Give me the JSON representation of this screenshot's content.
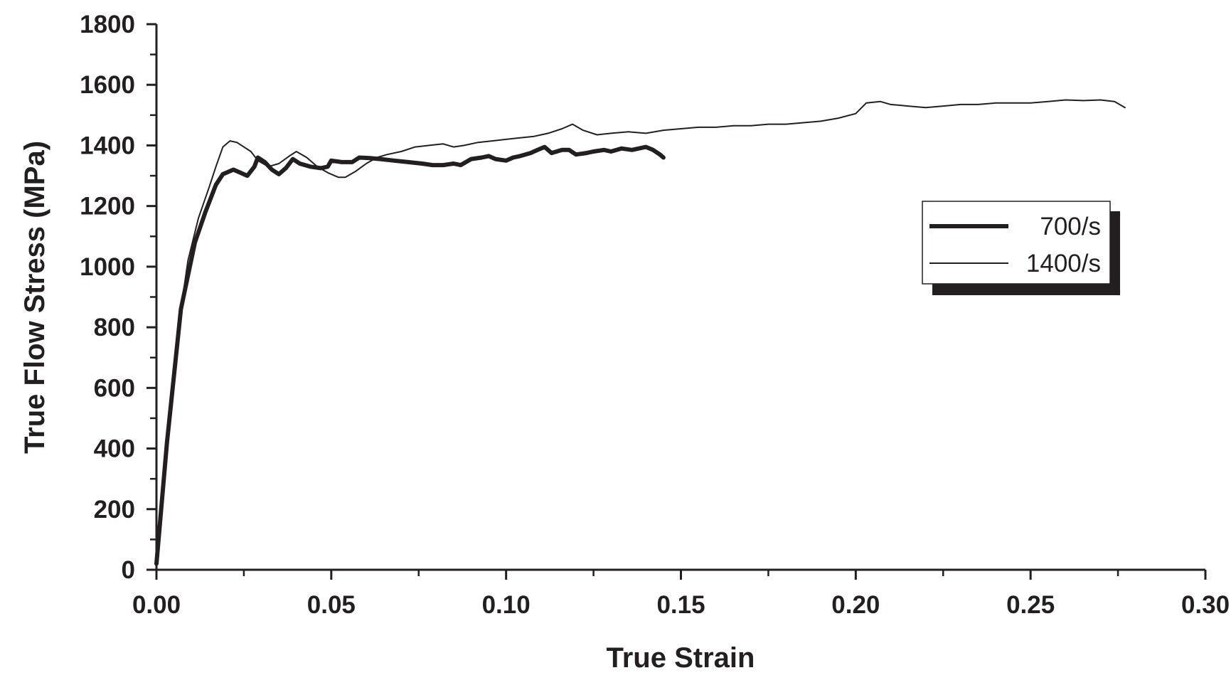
{
  "chart_data": {
    "type": "line",
    "xlabel": "True Strain",
    "ylabel": "True Flow Stress (MPa)",
    "xlim": [
      0,
      0.3
    ],
    "ylim": [
      0,
      1800
    ],
    "x_major_ticks": [
      "0.00",
      "0.05",
      "0.10",
      "0.15",
      "0.20",
      "0.25",
      "0.30"
    ],
    "y_major_ticks": [
      "0",
      "200",
      "400",
      "600",
      "800",
      "1000",
      "1200",
      "1400",
      "1600",
      "1800"
    ],
    "grid": false,
    "legend_position": "right",
    "series": [
      {
        "name": "700/s",
        "line": "thick",
        "points": [
          [
            0.0,
            20
          ],
          [
            0.003,
            420
          ],
          [
            0.007,
            860
          ],
          [
            0.011,
            1080
          ],
          [
            0.014,
            1180
          ],
          [
            0.017,
            1270
          ],
          [
            0.019,
            1305
          ],
          [
            0.022,
            1320
          ],
          [
            0.024,
            1310
          ],
          [
            0.026,
            1300
          ],
          [
            0.028,
            1330
          ],
          [
            0.029,
            1360
          ],
          [
            0.031,
            1345
          ],
          [
            0.033,
            1320
          ],
          [
            0.035,
            1305
          ],
          [
            0.037,
            1325
          ],
          [
            0.039,
            1355
          ],
          [
            0.041,
            1340
          ],
          [
            0.044,
            1330
          ],
          [
            0.047,
            1325
          ],
          [
            0.049,
            1330
          ],
          [
            0.05,
            1350
          ],
          [
            0.053,
            1345
          ],
          [
            0.056,
            1345
          ],
          [
            0.058,
            1360
          ],
          [
            0.061,
            1358
          ],
          [
            0.064,
            1355
          ],
          [
            0.068,
            1350
          ],
          [
            0.072,
            1345
          ],
          [
            0.076,
            1340
          ],
          [
            0.079,
            1335
          ],
          [
            0.082,
            1335
          ],
          [
            0.085,
            1340
          ],
          [
            0.087,
            1335
          ],
          [
            0.09,
            1355
          ],
          [
            0.093,
            1360
          ],
          [
            0.095,
            1365
          ],
          [
            0.097,
            1355
          ],
          [
            0.1,
            1350
          ],
          [
            0.102,
            1360
          ],
          [
            0.104,
            1365
          ],
          [
            0.107,
            1375
          ],
          [
            0.109,
            1385
          ],
          [
            0.111,
            1395
          ],
          [
            0.113,
            1375
          ],
          [
            0.116,
            1385
          ],
          [
            0.118,
            1385
          ],
          [
            0.12,
            1370
          ],
          [
            0.123,
            1375
          ],
          [
            0.125,
            1380
          ],
          [
            0.128,
            1385
          ],
          [
            0.13,
            1380
          ],
          [
            0.133,
            1390
          ],
          [
            0.136,
            1385
          ],
          [
            0.138,
            1390
          ],
          [
            0.14,
            1395
          ],
          [
            0.142,
            1385
          ],
          [
            0.144,
            1370
          ],
          [
            0.145,
            1360
          ]
        ]
      },
      {
        "name": "1400/s",
        "line": "thin",
        "points": [
          [
            0.0,
            30
          ],
          [
            0.003,
            450
          ],
          [
            0.006,
            780
          ],
          [
            0.009,
            1020
          ],
          [
            0.012,
            1160
          ],
          [
            0.015,
            1260
          ],
          [
            0.017,
            1330
          ],
          [
            0.019,
            1395
          ],
          [
            0.021,
            1415
          ],
          [
            0.023,
            1410
          ],
          [
            0.025,
            1395
          ],
          [
            0.027,
            1380
          ],
          [
            0.029,
            1350
          ],
          [
            0.032,
            1330
          ],
          [
            0.035,
            1340
          ],
          [
            0.038,
            1365
          ],
          [
            0.04,
            1380
          ],
          [
            0.043,
            1360
          ],
          [
            0.046,
            1330
          ],
          [
            0.049,
            1310
          ],
          [
            0.052,
            1295
          ],
          [
            0.054,
            1295
          ],
          [
            0.057,
            1315
          ],
          [
            0.06,
            1340
          ],
          [
            0.063,
            1360
          ],
          [
            0.066,
            1370
          ],
          [
            0.07,
            1380
          ],
          [
            0.074,
            1395
          ],
          [
            0.078,
            1400
          ],
          [
            0.082,
            1405
          ],
          [
            0.085,
            1395
          ],
          [
            0.088,
            1400
          ],
          [
            0.092,
            1410
          ],
          [
            0.096,
            1415
          ],
          [
            0.1,
            1420
          ],
          [
            0.104,
            1425
          ],
          [
            0.108,
            1430
          ],
          [
            0.112,
            1440
          ],
          [
            0.116,
            1455
          ],
          [
            0.119,
            1470
          ],
          [
            0.122,
            1450
          ],
          [
            0.126,
            1435
          ],
          [
            0.13,
            1440
          ],
          [
            0.135,
            1445
          ],
          [
            0.14,
            1440
          ],
          [
            0.145,
            1450
          ],
          [
            0.15,
            1455
          ],
          [
            0.155,
            1460
          ],
          [
            0.16,
            1460
          ],
          [
            0.165,
            1465
          ],
          [
            0.17,
            1465
          ],
          [
            0.175,
            1470
          ],
          [
            0.18,
            1470
          ],
          [
            0.185,
            1475
          ],
          [
            0.19,
            1480
          ],
          [
            0.195,
            1490
          ],
          [
            0.2,
            1505
          ],
          [
            0.203,
            1540
          ],
          [
            0.207,
            1545
          ],
          [
            0.21,
            1535
          ],
          [
            0.215,
            1530
          ],
          [
            0.22,
            1525
          ],
          [
            0.225,
            1530
          ],
          [
            0.23,
            1535
          ],
          [
            0.235,
            1535
          ],
          [
            0.24,
            1540
          ],
          [
            0.245,
            1540
          ],
          [
            0.25,
            1540
          ],
          [
            0.255,
            1545
          ],
          [
            0.26,
            1550
          ],
          [
            0.265,
            1548
          ],
          [
            0.27,
            1550
          ],
          [
            0.274,
            1545
          ],
          [
            0.277,
            1525
          ]
        ]
      }
    ]
  }
}
